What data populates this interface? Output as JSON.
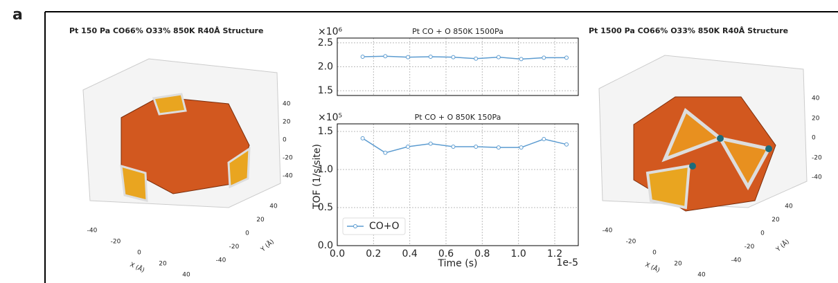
{
  "panel_label": "a",
  "structures": [
    {
      "title": "Pt 150 Pa CO66% O33% 850K R40Å Structure",
      "zticks": [
        40,
        20,
        0,
        -20,
        -40
      ],
      "xticks": [
        -40,
        -20,
        0,
        20,
        40
      ],
      "yticks": [
        40,
        20,
        0,
        -20,
        -40
      ],
      "xlabel": "X (Å)",
      "ylabel": "Y (Å)"
    },
    {
      "title": "Pt 1500 Pa CO66% O33% 850K R40Å Structure",
      "zticks": [
        40,
        20,
        0,
        -20,
        -40
      ],
      "xticks": [
        -40,
        -20,
        0,
        20,
        40
      ],
      "yticks": [
        40,
        20,
        0,
        -20,
        -40
      ],
      "xlabel": "X (Å)",
      "ylabel": "Y (Å)"
    }
  ],
  "chart_data": [
    {
      "type": "line",
      "title": "Pt CO + O 850K 1500Pa",
      "y_multiplier": "×10⁶",
      "x": [
        0.14,
        0.265,
        0.39,
        0.515,
        0.64,
        0.765,
        0.89,
        1.015,
        1.14,
        1.265
      ],
      "series": [
        {
          "name": "CO+O",
          "color": "#5b9bd0",
          "values": [
            2.21,
            2.22,
            2.2,
            2.21,
            2.2,
            2.17,
            2.2,
            2.16,
            2.19,
            2.19
          ]
        }
      ],
      "xlim": [
        0,
        1.33
      ],
      "xticks": [
        {
          "value": 0,
          "label": "0.0"
        },
        0.2,
        0.4,
        0.6,
        0.8,
        {
          "value": 1,
          "label": "1.0"
        },
        1.2
      ],
      "ylim": [
        1.4,
        2.6
      ],
      "yticks": [
        1.5,
        {
          "value": 2,
          "label": "2.0"
        },
        2.5
      ],
      "grid": true
    },
    {
      "type": "line",
      "title": "Pt CO + O 850K 150Pa",
      "y_multiplier": "×10⁵",
      "x_multiplier": "1e-5",
      "xlabel": "Time (s)",
      "ylabel": "TOF (1/s/site)",
      "x": [
        0.14,
        0.265,
        0.39,
        0.515,
        0.64,
        0.765,
        0.89,
        1.015,
        1.14,
        1.265
      ],
      "series": [
        {
          "name": "CO+O",
          "color": "#5b9bd0",
          "values": [
            1.41,
            1.22,
            1.3,
            1.34,
            1.3,
            1.3,
            1.29,
            1.29,
            1.4,
            1.33
          ]
        }
      ],
      "xlim": [
        0,
        1.33
      ],
      "xticks": [
        {
          "value": 0,
          "label": "0.0"
        },
        0.2,
        0.4,
        0.6,
        0.8,
        {
          "value": 1,
          "label": "1.0"
        },
        1.2
      ],
      "ylim": [
        0,
        1.6
      ],
      "yticks": [
        {
          "value": 0,
          "label": "0.0"
        },
        0.5,
        {
          "value": 1,
          "label": "1.0"
        },
        1.5
      ],
      "grid": true,
      "legend": "lower left"
    }
  ]
}
